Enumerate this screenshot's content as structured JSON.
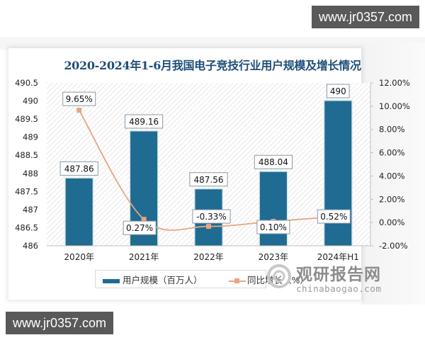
{
  "watermarks": {
    "top_right": "www.jr0357.com",
    "bottom_left": "www.jr0357.com"
  },
  "brand": {
    "name_cn": "观研报告网",
    "name_en": "chinabaogao.com"
  },
  "legend": {
    "bar_label": "用户规模（百万人）",
    "line_label": "同比增长（%）"
  },
  "colors": {
    "bar": "#1f6b92",
    "line": "#e8a583",
    "marker": "#e8a583",
    "title": "#1f4e79"
  },
  "chart_data": {
    "type": "bar",
    "title": "2020-2024年1-6月我国电子竞技行业用户规模及增长情况",
    "categories": [
      "2020年",
      "2021年",
      "2022年",
      "2023年",
      "2024年H1"
    ],
    "series": [
      {
        "name": "用户规模（百万人）",
        "type": "bar",
        "axis": "left",
        "values": [
          487.86,
          489.16,
          487.56,
          488.04,
          490
        ],
        "labels": [
          "487.86",
          "489.16",
          "487.56",
          "488.04",
          "490"
        ]
      },
      {
        "name": "同比增长（%）",
        "type": "line",
        "axis": "right",
        "values": [
          9.65,
          0.27,
          -0.33,
          0.1,
          0.52
        ],
        "labels": [
          "9.65%",
          "0.27%",
          "-0.33%",
          "0.10%",
          "0.52%"
        ]
      }
    ],
    "y_left": {
      "ticks": [
        "490.5",
        "490",
        "489.5",
        "489",
        "488.5",
        "488",
        "487.5",
        "487",
        "486.5",
        "486"
      ],
      "ylim": [
        486,
        490.5
      ]
    },
    "y_right": {
      "ticks": [
        "12.00%",
        "10.00%",
        "8.00%",
        "6.00%",
        "4.00%",
        "2.00%",
        "0.00%",
        "-2.00%"
      ],
      "ylim": [
        -2,
        12
      ]
    },
    "xlabel": "",
    "ylabel": "",
    "legend_position": "bottom",
    "grid": false
  }
}
